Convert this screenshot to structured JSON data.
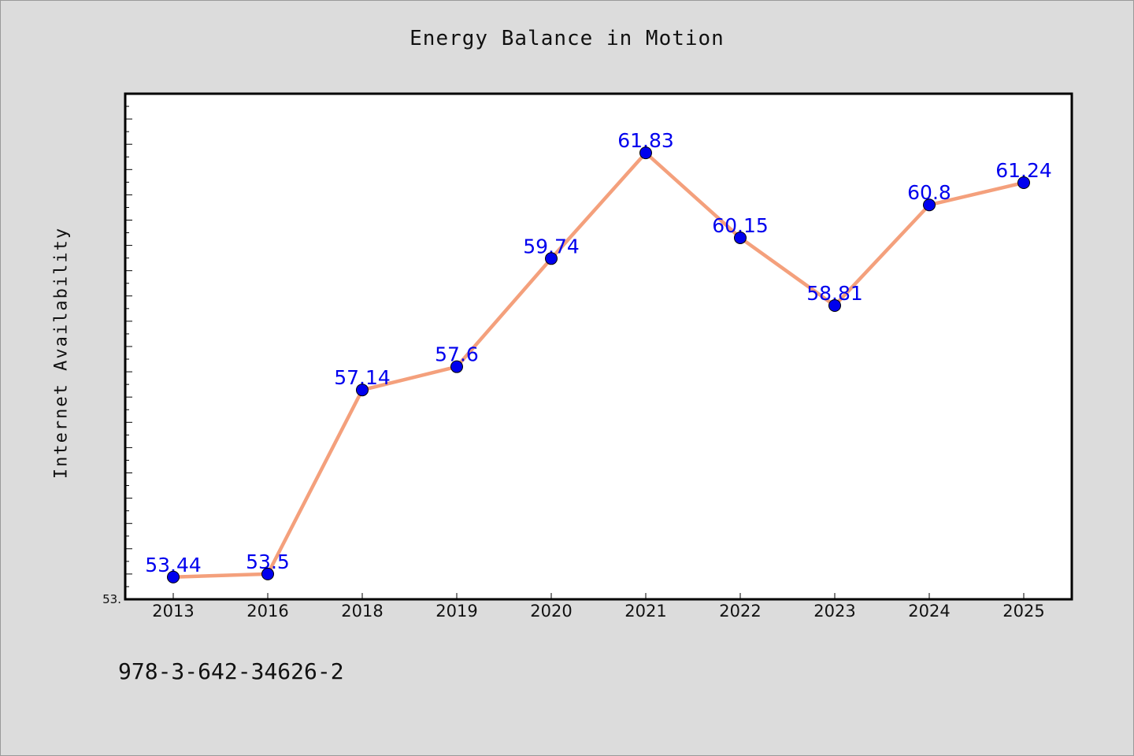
{
  "chart_data": {
    "type": "line",
    "title": "Energy Balance in Motion",
    "xlabel": "",
    "ylabel": "Internet Availability",
    "categories": [
      "2013",
      "2016",
      "2018",
      "2019",
      "2020",
      "2021",
      "2022",
      "2023",
      "2024",
      "2025"
    ],
    "series": [
      {
        "values": [
          53.44,
          53.5,
          57.14,
          57.6,
          59.74,
          61.83,
          60.15,
          58.81,
          60.8,
          61.24
        ]
      }
    ],
    "data_labels": [
      "53.44",
      "53.5",
      "57.14",
      "57.6",
      "59.74",
      "61.83",
      "60.15",
      "58.81",
      "60.8",
      "61.24"
    ],
    "ylim": [
      53.0,
      63.0
    ],
    "ytick_label": "53.",
    "grid": false,
    "line_color": "#f4a07c",
    "marker_color": "#0000ee",
    "label_color": "#0000ee"
  },
  "footer": {
    "isbn": "978-3-642-34626-2"
  }
}
